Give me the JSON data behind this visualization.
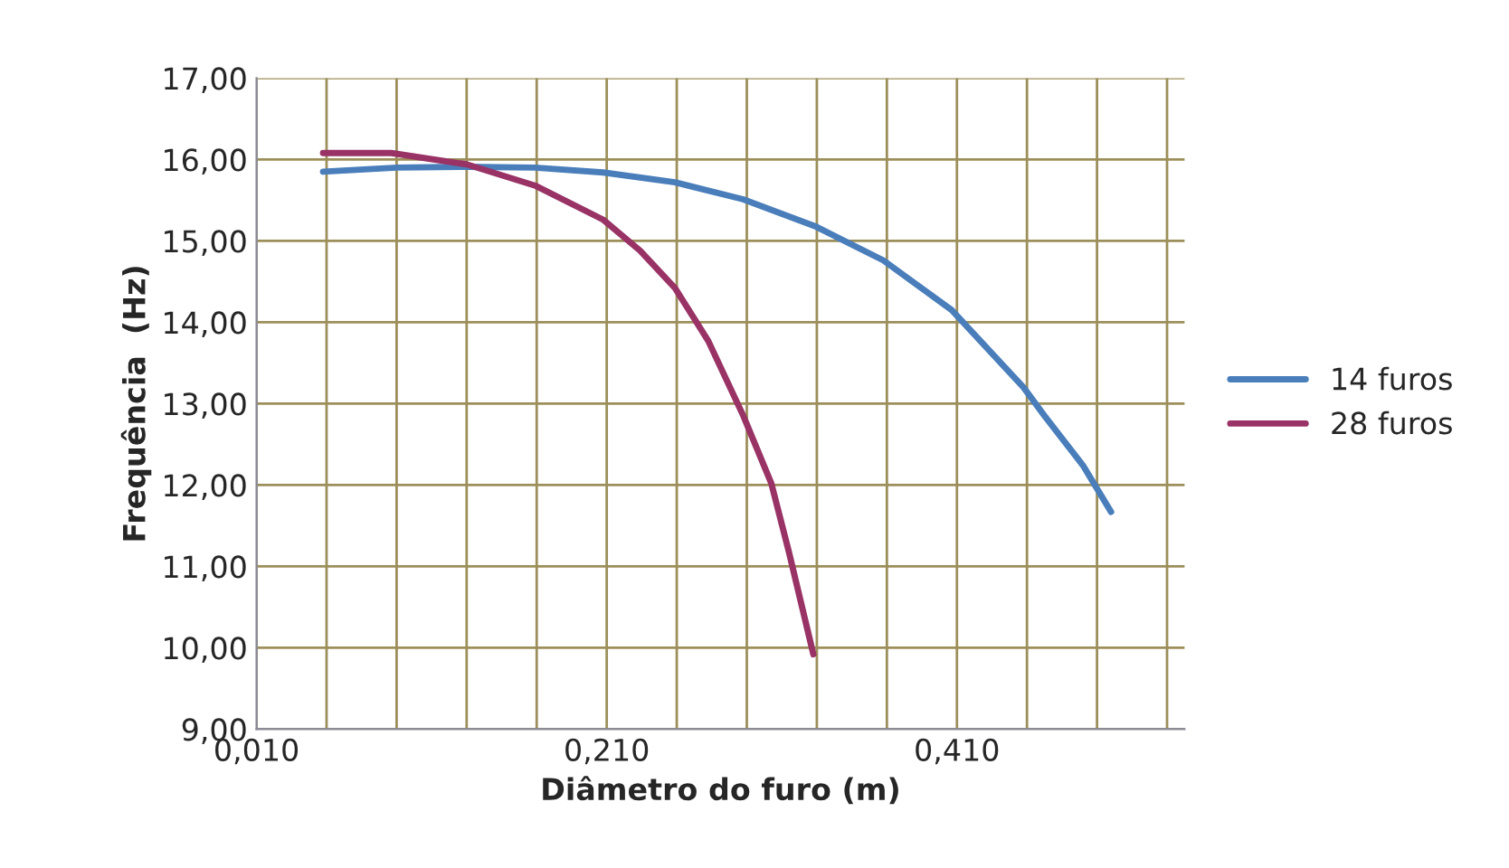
{
  "chart_data": {
    "type": "line",
    "xlabel": "Diâmetro do furo (m)",
    "ylabel": "Frequência  (Hz)",
    "series": [
      {
        "name": "14 furos",
        "color": "#4a7ebb",
        "x": [
          0.048,
          0.09,
          0.13,
          0.169,
          0.208,
          0.249,
          0.288,
          0.329,
          0.368,
          0.407,
          0.448,
          0.46,
          0.482,
          0.498
        ],
        "values": [
          15.85,
          15.9,
          15.91,
          15.9,
          15.84,
          15.72,
          15.51,
          15.18,
          14.76,
          14.15,
          13.2,
          12.85,
          12.24,
          11.67
        ]
      },
      {
        "name": "28 furos",
        "color": "#993366",
        "x": [
          0.048,
          0.087,
          0.13,
          0.169,
          0.208,
          0.229,
          0.249,
          0.268,
          0.288,
          0.304,
          0.314,
          0.328
        ],
        "values": [
          16.08,
          16.08,
          15.94,
          15.68,
          15.26,
          14.88,
          14.42,
          13.77,
          12.85,
          12.02,
          11.18,
          9.92
        ]
      }
    ],
    "xlim": [
      0.01,
      0.54
    ],
    "xticks": [
      {
        "value": 0.01,
        "label": "0,010"
      },
      {
        "value": 0.05,
        "label": null
      },
      {
        "value": 0.09,
        "label": null
      },
      {
        "value": 0.13,
        "label": null
      },
      {
        "value": 0.17,
        "label": null
      },
      {
        "value": 0.21,
        "label": "0,210"
      },
      {
        "value": 0.25,
        "label": null
      },
      {
        "value": 0.29,
        "label": null
      },
      {
        "value": 0.33,
        "label": null
      },
      {
        "value": 0.37,
        "label": null
      },
      {
        "value": 0.41,
        "label": "0,410"
      },
      {
        "value": 0.45,
        "label": null
      },
      {
        "value": 0.49,
        "label": null
      },
      {
        "value": 0.53,
        "label": null
      }
    ],
    "ylim": [
      9,
      17
    ],
    "yticks": [
      {
        "value": 9,
        "label": "9,00"
      },
      {
        "value": 10,
        "label": "10,00"
      },
      {
        "value": 11,
        "label": "11,00"
      },
      {
        "value": 12,
        "label": "12,00"
      },
      {
        "value": 13,
        "label": "13,00"
      },
      {
        "value": 14,
        "label": "14,00"
      },
      {
        "value": 15,
        "label": "15,00"
      },
      {
        "value": 16,
        "label": "16,00"
      },
      {
        "value": 17,
        "label": "17,00"
      }
    ],
    "grid": true,
    "legend": "right",
    "marker": "none",
    "line_style": "solid"
  }
}
